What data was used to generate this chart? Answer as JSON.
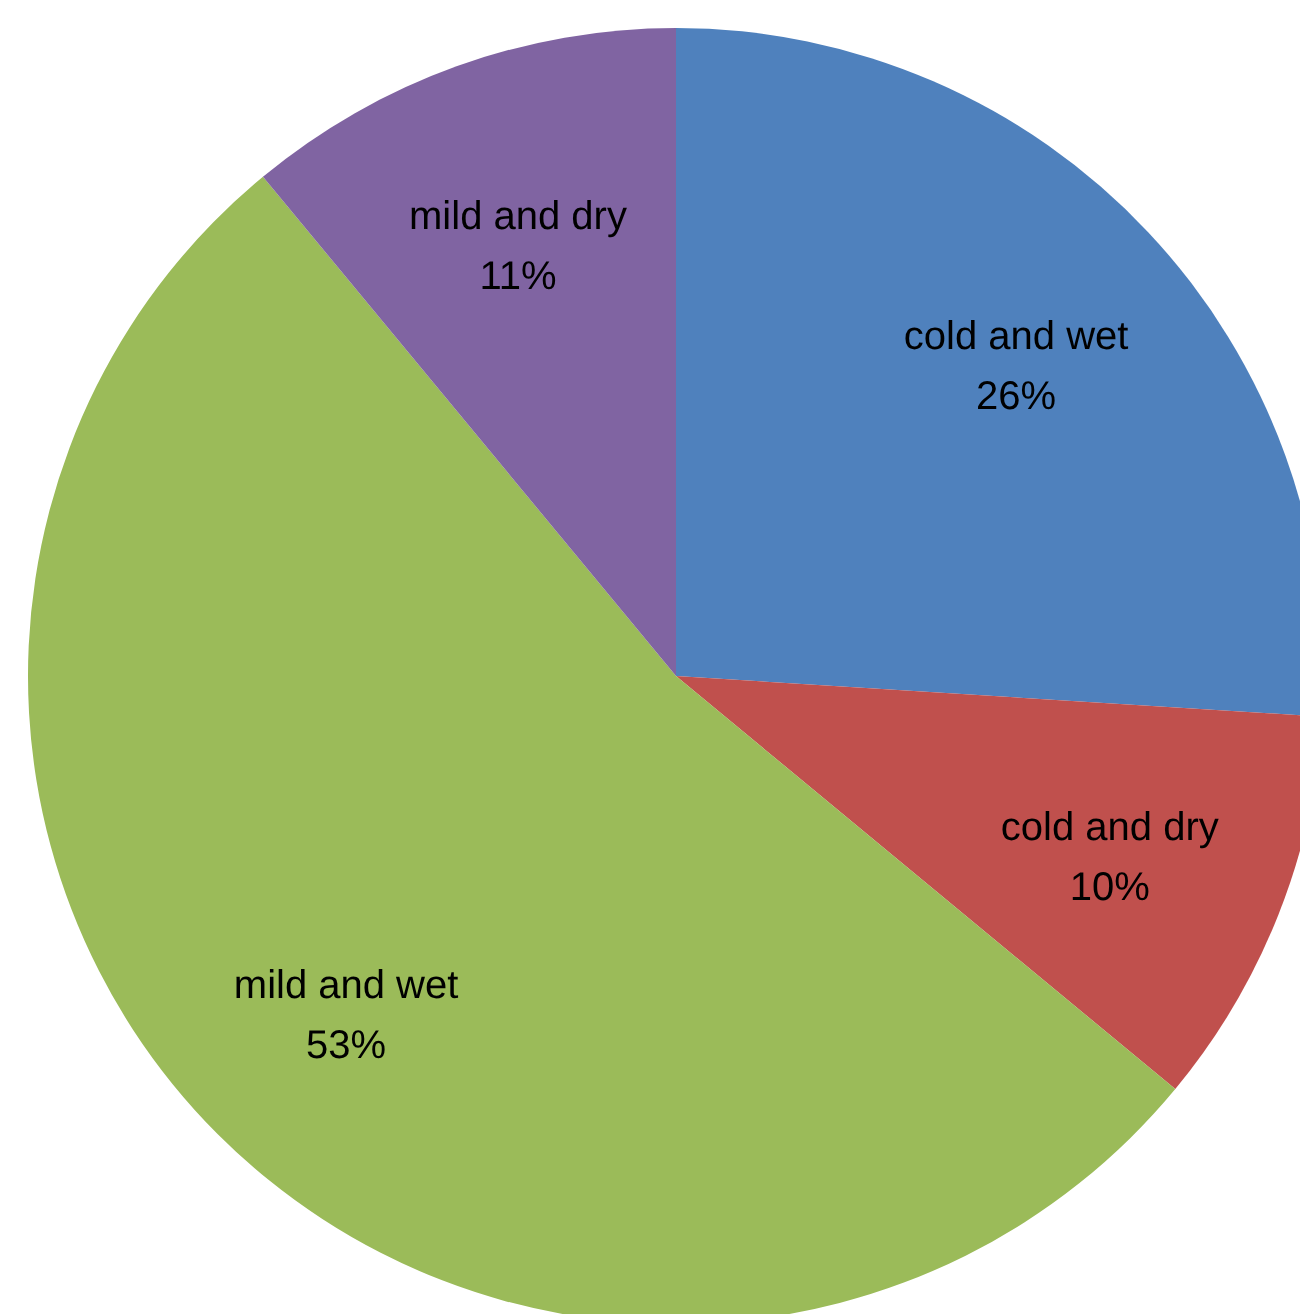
{
  "chart_data": {
    "type": "pie",
    "categories": [
      "cold and wet",
      "cold and dry",
      "mild and wet",
      "mild and dry"
    ],
    "values": [
      26,
      10,
      53,
      11
    ],
    "colors": [
      "#4f81bd",
      "#c0504d",
      "#9bbb59",
      "#8064a2"
    ],
    "value_labels": [
      "26%",
      "10%",
      "53%",
      "11%"
    ]
  }
}
